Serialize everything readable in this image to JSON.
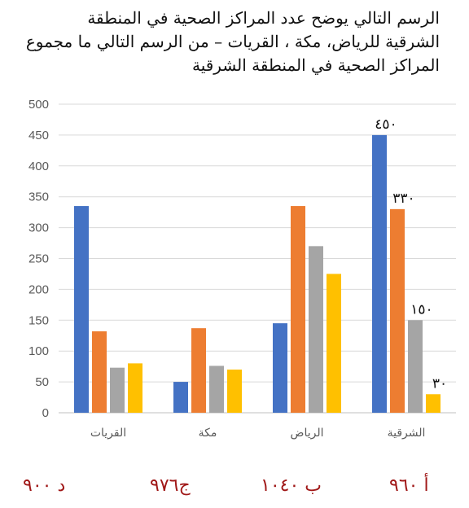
{
  "question": {
    "line1": "الرسم التالي يوضح عدد المراكز الصحية في المنطقة",
    "line2": "الشرقية للرياض، مكة ، القريات – من الرسم التالي ما مجموع",
    "line3": "المراكز الصحية في المنطقة الشرقية"
  },
  "chart_data": {
    "type": "bar",
    "title": "",
    "xlabel": "",
    "ylabel": "",
    "ylim": [
      0,
      500
    ],
    "yticks": [
      0,
      50,
      100,
      150,
      200,
      250,
      300,
      350,
      400,
      450,
      500
    ],
    "grid": true,
    "legend": "none",
    "categories": [
      "القريات",
      "مكة",
      "الرياض",
      "الشرقية"
    ],
    "series": [
      {
        "color": "#4472C4",
        "values": [
          335,
          50,
          145,
          450
        ]
      },
      {
        "color": "#ED7D31",
        "values": [
          132,
          137,
          335,
          330
        ]
      },
      {
        "color": "#A5A5A5",
        "values": [
          73,
          76,
          270,
          150
        ]
      },
      {
        "color": "#FFC000",
        "values": [
          80,
          70,
          225,
          30
        ]
      }
    ],
    "annotations": [
      {
        "category": "الشرقية",
        "series": 0,
        "text": "٤٥٠"
      },
      {
        "category": "الشرقية",
        "series": 1,
        "text": "٣٣٠"
      },
      {
        "category": "الشرقية",
        "series": 2,
        "text": "١٥٠"
      },
      {
        "category": "الشرقية",
        "series": 3,
        "text": "٣٠"
      }
    ]
  },
  "answers": {
    "a": "أ   ٩٦٠",
    "b": "ب  ١٠٤٠",
    "c": "ج٩٧٦",
    "d": "د  ٩٠٠"
  }
}
